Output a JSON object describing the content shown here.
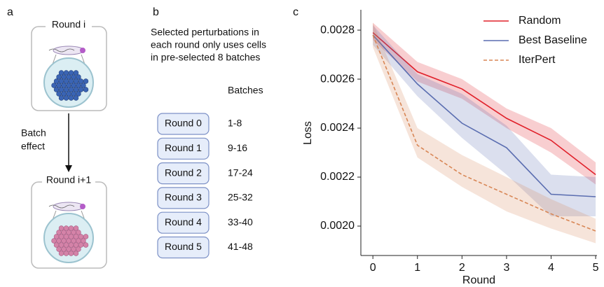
{
  "panel_labels": [
    "a",
    "b",
    "c"
  ],
  "panel_a": {
    "top_round": "Round i",
    "bottom_round": "Round i+1",
    "batch_effect": [
      "Batch",
      "effect"
    ]
  },
  "panel_b": {
    "description": [
      "Selected perturbations in",
      "each round only uses cells",
      "in pre-selected 8 batches"
    ],
    "batches_header": "Batches",
    "rounds": [
      {
        "name": "Round 0",
        "batches": "1-8"
      },
      {
        "name": "Round 1",
        "batches": "9-16"
      },
      {
        "name": "Round 2",
        "batches": "17-24"
      },
      {
        "name": "Round 3",
        "batches": "25-32"
      },
      {
        "name": "Round 4",
        "batches": "33-40"
      },
      {
        "name": "Round 5",
        "batches": "41-48"
      }
    ]
  },
  "chart_data": {
    "type": "line",
    "x_label": "Round",
    "y_label": "Loss",
    "x": [
      0,
      1,
      2,
      3,
      4,
      5
    ],
    "xlim": [
      -0.27,
      5.03
    ],
    "xticks": [
      0,
      1,
      2,
      3,
      4,
      5
    ],
    "ylim": [
      0.00188,
      0.002883
    ],
    "yticks": [
      {
        "value": 0.002,
        "label": "0.0020"
      },
      0.0022,
      0.0024,
      0.0026,
      0.0028
    ],
    "legend": "upper right",
    "series": [
      {
        "name": "Random",
        "color": "#e0202a",
        "linestyle": "solid",
        "values": [
          0.00279,
          0.00263,
          0.00256,
          0.00244,
          0.00235,
          0.00221
        ],
        "lower": [
          0.00276,
          0.00259,
          0.00252,
          0.0024,
          0.0023,
          0.00217
        ],
        "upper": [
          0.00283,
          0.00267,
          0.0026,
          0.00248,
          0.0024,
          0.00226
        ]
      },
      {
        "name": "Best Baseline",
        "color": "#5a6db0",
        "linestyle": "solid",
        "values": [
          0.00278,
          0.00258,
          0.00242,
          0.00232,
          0.00213,
          0.00212
        ],
        "lower": [
          0.00274,
          0.00253,
          0.00236,
          0.00221,
          0.00204,
          0.00204
        ],
        "upper": [
          0.00282,
          0.00262,
          0.00254,
          0.00241,
          0.00221,
          0.0022
        ]
      },
      {
        "name": "IterPert",
        "color": "#d88655",
        "linestyle": "dashed",
        "values": [
          0.00278,
          0.00233,
          0.00221,
          0.00213,
          0.00205,
          0.00198
        ],
        "lower": [
          0.00273,
          0.00228,
          0.00216,
          0.00206,
          0.00199,
          0.00193
        ],
        "upper": [
          0.00283,
          0.0024,
          0.00229,
          0.0022,
          0.00211,
          0.00203
        ]
      }
    ]
  }
}
